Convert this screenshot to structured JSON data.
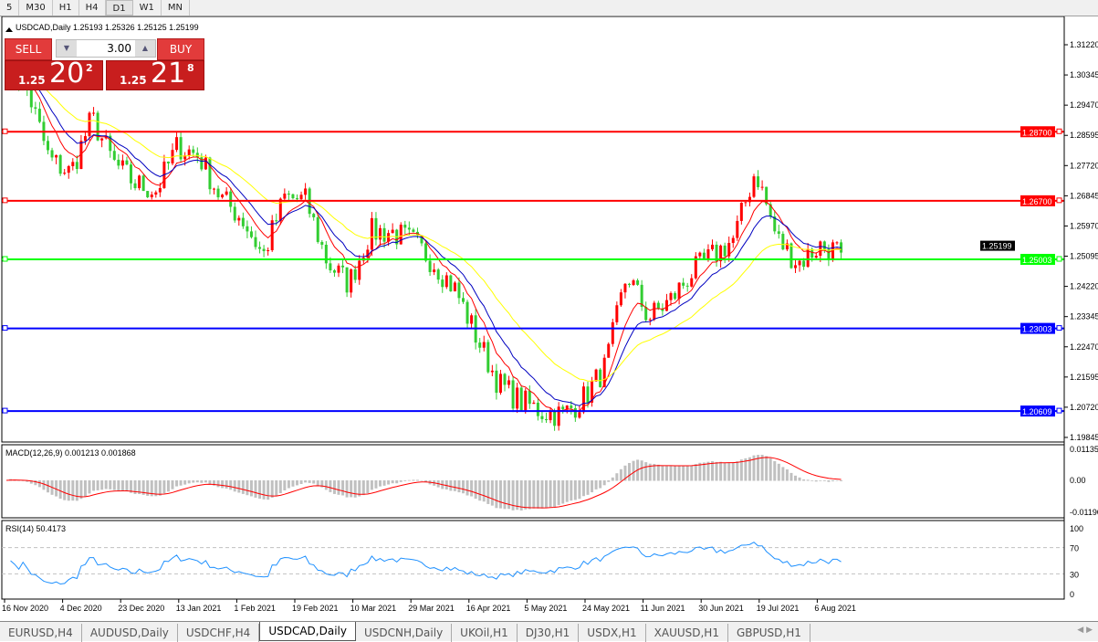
{
  "toolbar": {
    "timeframes": [
      "5",
      "M30",
      "H1",
      "H4",
      "D1",
      "W1",
      "MN"
    ],
    "active": "D1"
  },
  "chart": {
    "header": "USDCAD,Daily  1.25193 1.25326 1.25125 1.25199",
    "current_price": "1.25199",
    "price_ticks": [
      "1.31220",
      "1.30345",
      "1.29470",
      "1.28595",
      "1.27720",
      "1.26845",
      "1.25970",
      "1.25095",
      "1.24220",
      "1.23345",
      "1.22470",
      "1.21595",
      "1.20720",
      "1.19845"
    ],
    "hlines": [
      {
        "price": 1.287,
        "label": "1.28700",
        "color": "#ff0000"
      },
      {
        "price": 1.267,
        "label": "1.26700",
        "color": "#ff0000"
      },
      {
        "price": 1.25003,
        "label": "1.25003",
        "color": "#00ff00"
      },
      {
        "price": 1.23003,
        "label": "1.23003",
        "color": "#0000ff"
      },
      {
        "price": 1.20609,
        "label": "1.20609",
        "color": "#0000ff"
      }
    ],
    "date_ticks": [
      "16 Nov 2020",
      "4 Dec 2020",
      "23 Dec 2020",
      "13 Jan 2021",
      "1 Feb 2021",
      "19 Feb 2021",
      "10 Mar 2021",
      "29 Mar 2021",
      "16 Apr 2021",
      "5 May 2021",
      "24 May 2021",
      "11 Jun 2021",
      "30 Jun 2021",
      "19 Jul 2021",
      "6 Aug 2021"
    ],
    "colors": {
      "bull": "#ff0000",
      "bear": "#32cd32",
      "ma_fast": "#ff0000",
      "ma_mid": "#0000c0",
      "ma_slow": "#ffff00",
      "macd_hist": "#c0c0c0",
      "macd_signal": "#ff0000",
      "rsi": "#1e90ff"
    }
  },
  "trade_panel": {
    "sell_label": "SELL",
    "buy_label": "BUY",
    "lot": "3.00",
    "sell_prefix": "1.25",
    "sell_big": "20",
    "sell_sup": "2",
    "buy_prefix": "1.25",
    "buy_big": "21",
    "buy_sup": "8"
  },
  "macd": {
    "label": "MACD(12,26,9) 0.001213 0.001868",
    "ticks": [
      "0.01135",
      "0.00",
      "-0.01190"
    ]
  },
  "rsi": {
    "label": "RSI(14) 50.4173",
    "ticks": [
      "100",
      "70",
      "30",
      "0"
    ]
  },
  "chart_data": {
    "type": "candlestick",
    "symbol": "USDCAD",
    "timeframe": "Daily",
    "approx_close_path": [
      1.307,
      1.2987,
      1.279,
      1.275,
      1.291,
      1.278,
      1.272,
      1.27,
      1.283,
      1.28,
      1.268,
      1.262,
      1.251,
      1.268,
      1.267,
      1.249,
      1.243,
      1.258,
      1.258,
      1.255,
      1.249,
      1.241,
      1.227,
      1.214,
      1.209,
      1.206,
      1.205,
      1.21,
      1.219,
      1.246,
      1.233,
      1.238,
      1.246,
      1.251,
      1.256,
      1.276,
      1.256,
      1.249,
      1.254,
      1.25199
    ],
    "ylim": [
      1.19845,
      1.3122
    ]
  },
  "tabs": [
    "EURUSD,H4",
    "AUDUSD,Daily",
    "USDCHF,H4",
    "USDCAD,Daily",
    "USDCNH,Daily",
    "UKOil,H1",
    "DJ30,H1",
    "USDX,H1",
    "XAUUSD,H1",
    "GBPUSD,H1"
  ],
  "active_tab": "USDCAD,Daily"
}
